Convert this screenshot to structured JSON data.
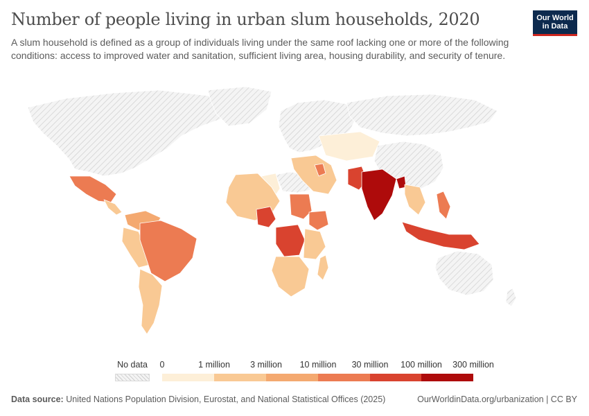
{
  "header": {
    "title": "Number of people living in urban slum households, 2020",
    "subtitle": "A slum household is defined as a group of individuals living under the same roof lacking one or more of the following conditions: access to improved water and sanitation, sufficient living area, housing durability, and security of tenure.",
    "logo_line1": "Our World",
    "logo_line2": "in Data"
  },
  "colors": {
    "no_data": "#e3e3e3",
    "bin0": "#fdefd8",
    "bin1": "#f9c994",
    "bin2": "#f4a970",
    "bin3": "#ec7b52",
    "bin4": "#d9432f",
    "bin5": "#ae0b0b",
    "border": "#ffffff"
  },
  "legend": {
    "no_data_label": "No data",
    "ticks": [
      "0",
      "1 million",
      "3 million",
      "10 million",
      "30 million",
      "100 million",
      "300 million"
    ]
  },
  "footer": {
    "source_label": "Data source:",
    "source_text": " United Nations Population Division, Eurostat, and National Statistical Offices (2025)",
    "url": "OurWorldinData.org/urbanization | CC BY"
  }
}
